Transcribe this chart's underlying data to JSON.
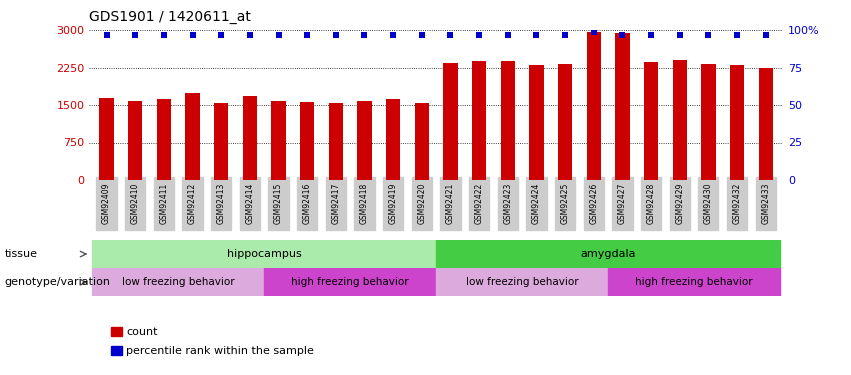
{
  "title": "GDS1901 / 1420611_at",
  "samples": [
    "GSM92409",
    "GSM92410",
    "GSM92411",
    "GSM92412",
    "GSM92413",
    "GSM92414",
    "GSM92415",
    "GSM92416",
    "GSM92417",
    "GSM92418",
    "GSM92419",
    "GSM92420",
    "GSM92421",
    "GSM92422",
    "GSM92423",
    "GSM92424",
    "GSM92425",
    "GSM92426",
    "GSM92427",
    "GSM92428",
    "GSM92429",
    "GSM92430",
    "GSM92432",
    "GSM92433"
  ],
  "counts": [
    1650,
    1580,
    1620,
    1750,
    1540,
    1680,
    1580,
    1560,
    1540,
    1580,
    1620,
    1550,
    2350,
    2380,
    2390,
    2310,
    2330,
    2970,
    2940,
    2360,
    2410,
    2320,
    2310,
    2250
  ],
  "percentile_ranks": [
    97,
    97,
    97,
    97,
    97,
    97,
    97,
    97,
    97,
    97,
    97,
    97,
    97,
    97,
    97,
    97,
    97,
    99,
    97,
    97,
    97,
    97,
    97,
    97
  ],
  "bar_color": "#cc0000",
  "dot_color": "#0000cc",
  "ylim": [
    0,
    3000
  ],
  "yticks": [
    0,
    750,
    1500,
    2250,
    3000
  ],
  "y2ticks": [
    0,
    25,
    50,
    75,
    100
  ],
  "y2labels": [
    "0",
    "25",
    "50",
    "75",
    "100%"
  ],
  "tissue_groups": [
    {
      "label": "hippocampus",
      "start": 0,
      "end": 12,
      "color": "#aaeaaa"
    },
    {
      "label": "amygdala",
      "start": 12,
      "end": 24,
      "color": "#44cc44"
    }
  ],
  "genotype_groups": [
    {
      "label": "low freezing behavior",
      "start": 0,
      "end": 6,
      "color": "#ddaadd"
    },
    {
      "label": "high freezing behavior",
      "start": 6,
      "end": 12,
      "color": "#cc44cc"
    },
    {
      "label": "low freezing behavior",
      "start": 12,
      "end": 18,
      "color": "#ddaadd"
    },
    {
      "label": "high freezing behavior",
      "start": 18,
      "end": 24,
      "color": "#cc44cc"
    }
  ],
  "tissue_label": "tissue",
  "genotype_label": "genotype/variation",
  "legend_count_label": "count",
  "legend_pct_label": "percentile rank within the sample",
  "bar_width": 0.5,
  "xtick_bg_color": "#cccccc"
}
